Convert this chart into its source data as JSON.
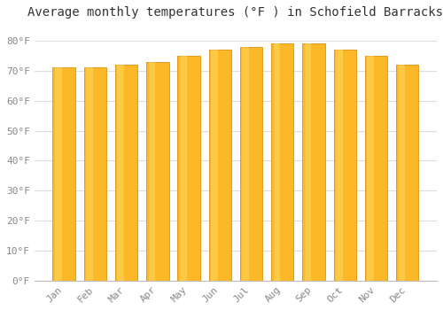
{
  "title": "Average monthly temperatures (°F ) in Schofield Barracks",
  "months": [
    "Jan",
    "Feb",
    "Mar",
    "Apr",
    "May",
    "Jun",
    "Jul",
    "Aug",
    "Sep",
    "Oct",
    "Nov",
    "Dec"
  ],
  "values": [
    71,
    71,
    72,
    73,
    75,
    77,
    78,
    79,
    79,
    77,
    75,
    72
  ],
  "bar_color": "#FDB827",
  "bar_edge_color": "#E09010",
  "background_color": "#FFFFFF",
  "plot_bg_color": "#FFFFFF",
  "grid_color": "#DDDDDD",
  "text_color": "#888888",
  "title_color": "#333333",
  "ylim": [
    0,
    85
  ],
  "yticks": [
    0,
    10,
    20,
    30,
    40,
    50,
    60,
    70,
    80
  ],
  "title_fontsize": 10,
  "tick_fontsize": 8,
  "font_family": "monospace"
}
